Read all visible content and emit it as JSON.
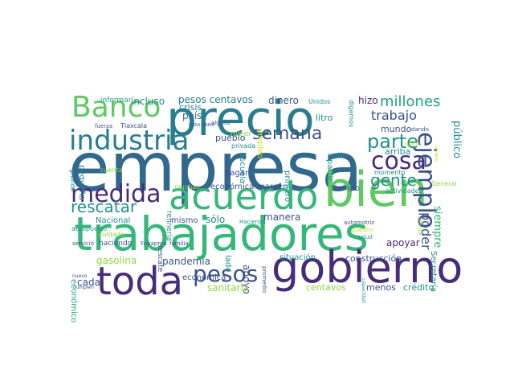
{
  "palette": {
    "dark_purple": "#472c7a",
    "indigo": "#3b528b",
    "blue": "#31688e",
    "teal_blue": "#287d8e",
    "teal": "#21918c",
    "sea_green": "#20a486",
    "green": "#35b779",
    "lime_green": "#5ec962",
    "yellow_green": "#90d743",
    "yellow": "#c8e020"
  },
  "words": [
    {
      "id": "empresa",
      "text": "empresa"
    },
    {
      "id": "trabajadores",
      "text": "trabajadores"
    },
    {
      "id": "precio",
      "text": "precio"
    },
    {
      "id": "gobierno",
      "text": "gobierno"
    },
    {
      "id": "bien",
      "text": "bien"
    },
    {
      "id": "acuerdo",
      "text": "acuerdo"
    },
    {
      "id": "toda",
      "text": "toda"
    },
    {
      "id": "industria",
      "text": "industria"
    },
    {
      "id": "banco",
      "text": "Banco"
    },
    {
      "id": "medida",
      "text": "medida"
    },
    {
      "id": "pesos-big",
      "text": "pesos"
    },
    {
      "id": "cosa",
      "text": "cosa"
    },
    {
      "id": "ejemplo",
      "text": "ejemplo"
    },
    {
      "id": "semana",
      "text": "semana"
    },
    {
      "id": "parte",
      "text": "parte"
    },
    {
      "id": "rescatar",
      "text": "rescatar"
    },
    {
      "id": "gente",
      "text": "gente"
    },
    {
      "id": "millones",
      "text": "millones"
    },
    {
      "id": "trabajo",
      "text": "trabajo"
    },
    {
      "id": "poder",
      "text": "poder"
    },
    {
      "id": "siempre",
      "text": "siempre"
    },
    {
      "id": "publico",
      "text": "público"
    },
    {
      "id": "pesos-centavos",
      "text": "pesos centavos"
    },
    {
      "id": "incluso",
      "text": "incluso"
    },
    {
      "id": "informar",
      "text": "informar"
    },
    {
      "id": "crisis",
      "text": "crisis"
    },
    {
      "id": "pais",
      "text": "país"
    },
    {
      "id": "dinero",
      "text": "dinero"
    },
    {
      "id": "hizo",
      "text": "hizo"
    },
    {
      "id": "unidos",
      "text": "Unidos"
    },
    {
      "id": "digamos",
      "text": "digamos"
    },
    {
      "id": "litro",
      "text": "litro"
    },
    {
      "id": "mundo",
      "text": "mundo"
    },
    {
      "id": "arriba",
      "text": "arriba"
    },
    {
      "id": "alguna",
      "text": "alguna"
    },
    {
      "id": "luisa-maria",
      "text": "LUISA MARÍA"
    },
    {
      "id": "fuerza",
      "text": "fuerza"
    },
    {
      "id": "tlaxcala",
      "text": "Tlaxcala"
    },
    {
      "id": "pequena",
      "text": "pequeña"
    },
    {
      "id": "grande",
      "text": "grande"
    },
    {
      "id": "empleo",
      "text": "empleo"
    },
    {
      "id": "mejor",
      "text": "mejor"
    },
    {
      "id": "pueblo",
      "text": "pueblo"
    },
    {
      "id": "privada",
      "text": "privada"
    },
    {
      "id": "escuela",
      "text": "escuela"
    },
    {
      "id": "primero",
      "text": "primero"
    },
    {
      "id": "partir",
      "text": "partir"
    },
    {
      "id": "nacion",
      "text": "nación"
    },
    {
      "id": "acero",
      "text": "acero"
    },
    {
      "id": "dando",
      "text": "dando"
    },
    {
      "id": "diario",
      "text": "diario"
    },
    {
      "id": "cuenta",
      "text": "cuenta"
    },
    {
      "id": "refineria",
      "text": "refinería"
    },
    {
      "id": "pagar",
      "text": "pagar"
    },
    {
      "id": "momento",
      "text": "momento"
    },
    {
      "id": "muchas",
      "text": "muchas"
    },
    {
      "id": "economica-1",
      "text": "económica"
    },
    {
      "id": "margen",
      "text": "margen"
    },
    {
      "id": "tiempo",
      "text": "tiempo"
    },
    {
      "id": "general",
      "text": "General"
    },
    {
      "id": "actividades",
      "text": "actividades"
    },
    {
      "id": "nacional",
      "text": "Nacional"
    },
    {
      "id": "mismo",
      "text": "mismo"
    },
    {
      "id": "solo",
      "text": "sólo"
    },
    {
      "id": "manera",
      "text": "manera"
    },
    {
      "id": "hacienda",
      "text": "Hacienda"
    },
    {
      "id": "automotriz",
      "text": "automotriz"
    },
    {
      "id": "planta",
      "text": "planta"
    },
    {
      "id": "aeropuerto",
      "text": "aeropuerto"
    },
    {
      "id": "cuidado",
      "text": "cuidado"
    },
    {
      "id": "rescate",
      "text": "rescate"
    },
    {
      "id": "economico",
      "text": "económico"
    },
    {
      "id": "apoyo",
      "text": "apoyo"
    },
    {
      "id": "lado",
      "text": "lado"
    },
    {
      "id": "promedio",
      "text": "promedio"
    },
    {
      "id": "salud",
      "text": "salud"
    },
    {
      "id": "apoyar",
      "text": "apoyar"
    },
    {
      "id": "secretaria",
      "text": "Secretaría"
    },
    {
      "id": "gasolina",
      "text": "gasolina"
    },
    {
      "id": "pandemia",
      "text": "pandemia"
    },
    {
      "id": "situacion",
      "text": "situación"
    },
    {
      "id": "construccion",
      "text": "construcción"
    },
    {
      "id": "servicio",
      "text": "servicio"
    },
    {
      "id": "haciendo",
      "text": "haciendo"
    },
    {
      "id": "fobaproa",
      "text": "Fobaproa"
    },
    {
      "id": "familia",
      "text": "familia"
    },
    {
      "id": "economica-2",
      "text": "económica"
    },
    {
      "id": "capacidad",
      "text": "capacidad"
    },
    {
      "id": "cada",
      "text": "cada"
    },
    {
      "id": "nuevo",
      "text": "nuevo"
    },
    {
      "id": "cumplen",
      "text": "cumplen"
    },
    {
      "id": "sanitaria",
      "text": "sanitaria"
    },
    {
      "id": "centavos",
      "text": "centavos"
    },
    {
      "id": "menos",
      "text": "menos"
    },
    {
      "id": "credito",
      "text": "crédito"
    },
    {
      "id": "pueden",
      "text": "pueden"
    }
  ]
}
